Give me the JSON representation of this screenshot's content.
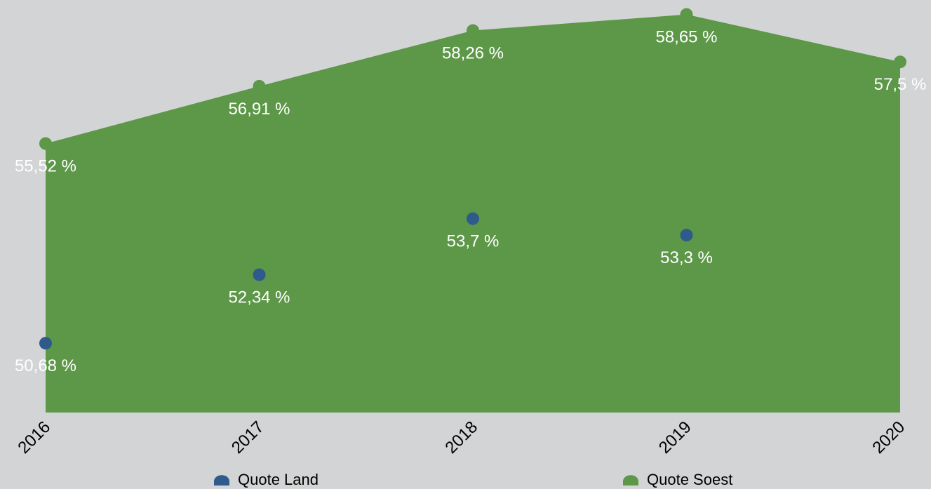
{
  "chart_data": {
    "type": "area",
    "categories": [
      "2016",
      "2017",
      "2018",
      "2019",
      "2020"
    ],
    "series": [
      {
        "name": "Quote Land",
        "color": "#2e5a8c",
        "values": [
          50.68,
          52.34,
          53.7,
          53.3,
          null
        ],
        "value_labels": [
          "50,68 %",
          "52,34 %",
          "53,7 %",
          "53,3 %",
          null
        ]
      },
      {
        "name": "Quote Soest",
        "color": "#5d9748",
        "values": [
          55.52,
          56.91,
          58.26,
          58.65,
          57.5
        ],
        "value_labels": [
          "55,52 %",
          "56,91 %",
          "58,26 %",
          "58,65 %",
          "57,5 %"
        ]
      }
    ],
    "ylim": [
      49,
      59
    ],
    "legend": "bottom"
  }
}
